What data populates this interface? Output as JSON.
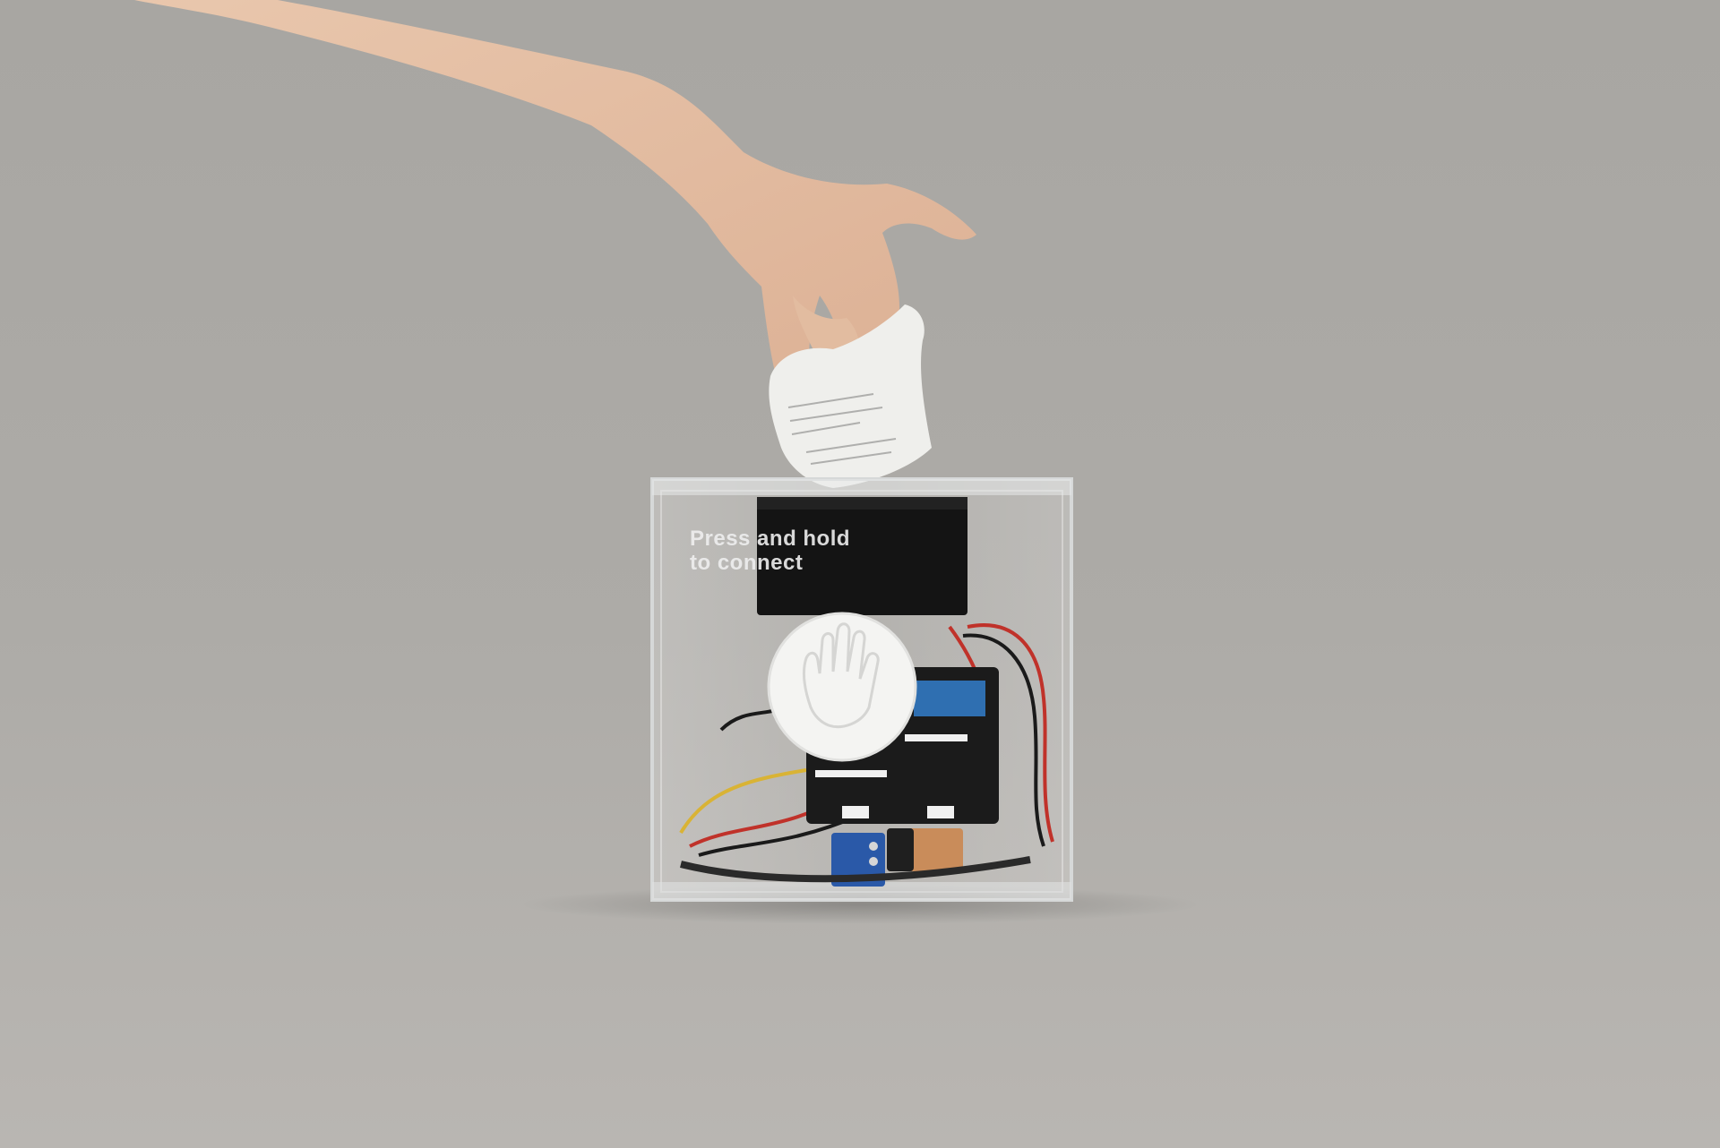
{
  "photo": {
    "colors": {
      "backdrop_top": "#a9a7a3",
      "backdrop_bottom": "#b8b5b1",
      "skin": "#e8c3a8",
      "acrylic": "#d9dcdc",
      "black_module": "#151515",
      "button_white": "#f4f4f2",
      "pcb_black": "#1b1b1b",
      "pcb_blue": "#2a59a8",
      "battery": "#c98c5a",
      "wire_red": "#c0322a",
      "wire_yellow": "#d9b335",
      "wire_black": "#1a1a1a"
    },
    "labels": {
      "line1": "Press and hold",
      "line2": "to connect"
    }
  }
}
